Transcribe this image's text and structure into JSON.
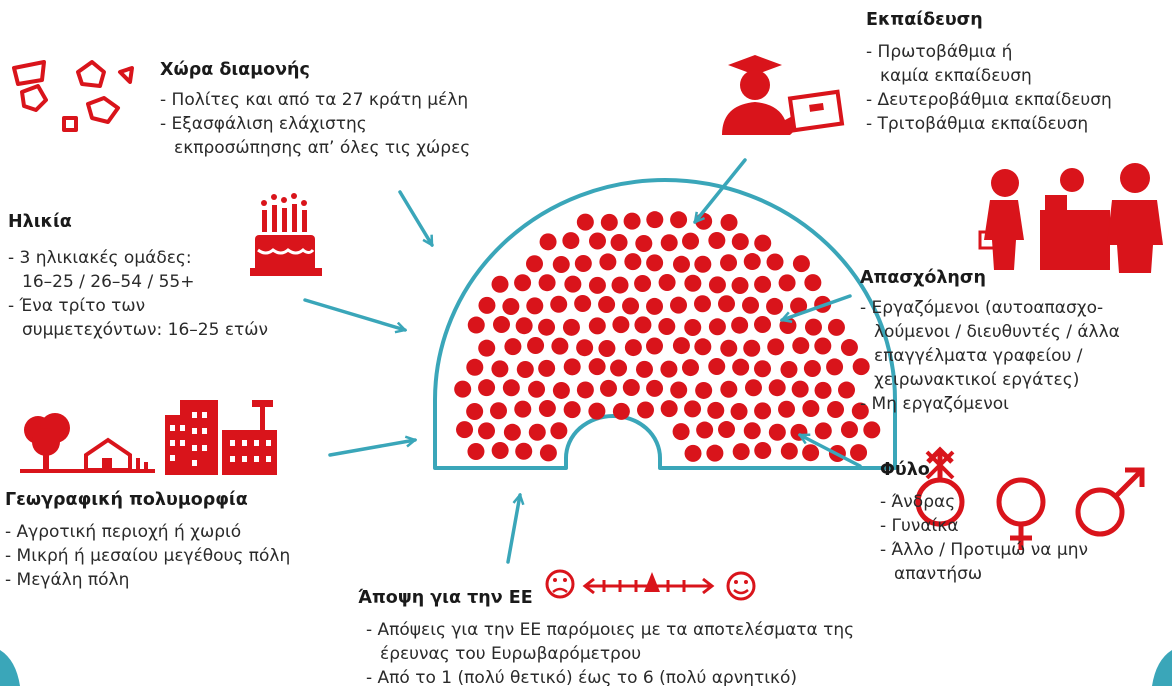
{
  "sections": [
    {
      "title": "Χώρα διαμονής",
      "lines": [
        "- Πολίτες και από τα 27 κράτη μέλη",
        "- Εξασφάλιση ελάχιστης",
        "εκπροσώπησης απ’ όλες τις χώρες"
      ]
    },
    {
      "title": "Ηλικία",
      "lines": [
        "- 3 ηλικιακές ομάδες:",
        "16–25 / 26–54 / 55+",
        "- Ένα τρίτο των",
        "συμμετεχόντων: 16–25 ετών"
      ]
    },
    {
      "title": "Γεωγραφική πολυμορφία",
      "lines": [
        "- Αγροτική περιοχή ή χωριό",
        "- Μικρή ή μεσαίου μεγέθους πόλη",
        "- Μεγάλη πόλη"
      ]
    },
    {
      "title": "Άποψη για την ΕΕ",
      "lines": [
        "- Απόψεις για την ΕΕ παρόμοιες με τα αποτελέσματα της",
        "έρευνας του Ευρωβαρόμετρου",
        "- Από το 1 (πολύ θετικό) έως το 6 (πολύ αρνητικό)"
      ]
    },
    {
      "title": "Εκπαίδευση",
      "lines": [
        "- Πρωτοβάθμια ή",
        "καμία εκπαίδευση",
        "- Δευτεροβάθμια εκπαίδευση",
        "- Τριτοβάθμια εκπαίδευση"
      ]
    },
    {
      "title": "Απασχόληση",
      "lines": [
        "- Εργαζόμενοι (αυτοαπασχο-",
        "λούμενοι / διευθυντές / άλλα",
        "επαγγέλματα γραφείου /",
        "χειρωνακτικοί εργάτες)",
        "- Μη εργαζόμενοι"
      ]
    },
    {
      "title": "Φύλο",
      "lines": [
        "- Άνδρας",
        "- Γυναίκα",
        "- Άλλο / Προτιμώ να μην",
        "απαντήσω"
      ]
    }
  ]
}
